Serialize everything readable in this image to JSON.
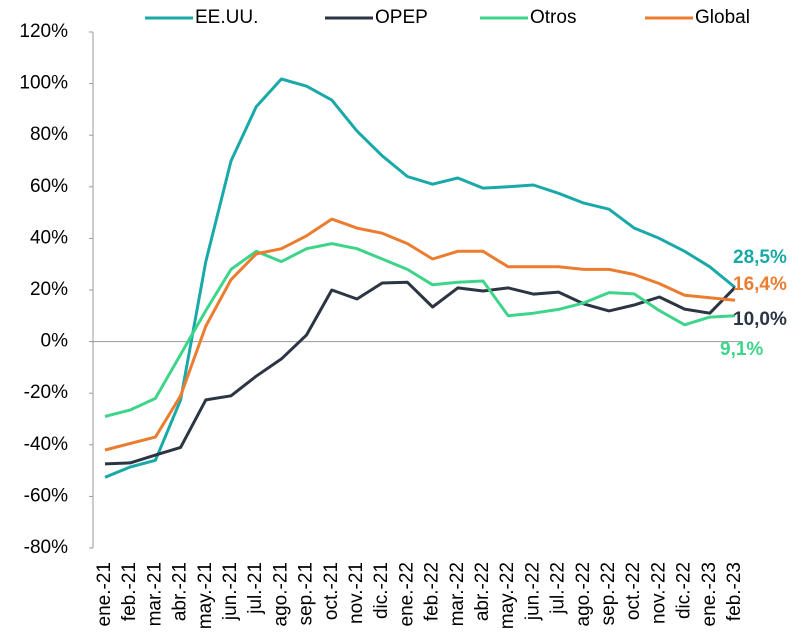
{
  "chart_data": {
    "type": "line",
    "categories": [
      "ene.-21",
      "feb.-21",
      "mar.-21",
      "abr.-21",
      "may.-21",
      "jun.-21",
      "jul.-21",
      "ago.-21",
      "sep.-21",
      "oct.-21",
      "nov.-21",
      "dic.-21",
      "ene.-22",
      "feb.-22",
      "mar.-22",
      "abr.-22",
      "may.-22",
      "jun.-22",
      "jul.-22",
      "ago.-22",
      "sep.-22",
      "oct.-22",
      "nov.-22",
      "dic.-22",
      "ene.-23",
      "feb.-23"
    ],
    "series": [
      {
        "name": "EE.UU.",
        "color": "#1aa9a9",
        "values": [
          -52.6,
          -48.6,
          -46,
          -22.6,
          31,
          70,
          91,
          101.8,
          99,
          93.6,
          81.6,
          72,
          64,
          61,
          63.4,
          59.5,
          60,
          60.7,
          57.5,
          53.7,
          51.3,
          44,
          40,
          35,
          29,
          21
        ]
      },
      {
        "name": "OPEP",
        "color": "#2b3544",
        "values": [
          -47.4,
          -47,
          -44,
          -41,
          -22.6,
          -21,
          -13.4,
          -6.7,
          2.6,
          20,
          16.5,
          22.7,
          23,
          13.4,
          20.8,
          19.6,
          20.8,
          18.4,
          19.2,
          14.6,
          11.9,
          14.2,
          17.3,
          12.6,
          11,
          21
        ]
      },
      {
        "name": "Otros",
        "color": "#3ed58a",
        "values": [
          -29,
          -26.5,
          -22,
          -5,
          12,
          28,
          35,
          31,
          36,
          38,
          36,
          32,
          28,
          22,
          23,
          23.5,
          10,
          11,
          12.5,
          15,
          19,
          18.5,
          12,
          6.5,
          9.5,
          10
        ]
      },
      {
        "name": "Global",
        "color": "#ec7c30",
        "values": [
          -42,
          -39.5,
          -37,
          -21,
          6,
          24,
          34,
          36,
          41,
          47.5,
          44,
          42,
          38,
          32,
          35,
          35,
          29,
          29,
          29,
          28,
          28,
          26,
          22.5,
          18,
          17,
          16
        ]
      }
    ],
    "ylim": [
      -80,
      120
    ],
    "yticks": [
      {
        "value": -80,
        "label": "-80%"
      },
      {
        "value": -60,
        "label": "-60%"
      },
      {
        "value": -40,
        "label": "-40%"
      },
      {
        "value": -20,
        "label": "-20%"
      },
      {
        "value": 0,
        "label": "0%"
      },
      {
        "value": 20,
        "label": "20%"
      },
      {
        "value": 40,
        "label": "40%"
      },
      {
        "value": 60,
        "label": "60%"
      },
      {
        "value": 80,
        "label": "80%"
      },
      {
        "value": 100,
        "label": "100%"
      },
      {
        "value": 120,
        "label": "120%"
      }
    ],
    "annotations": [
      {
        "text": "28,5%",
        "color": "#1aa9a9"
      },
      {
        "text": "16,4%",
        "color": "#ec7c30"
      },
      {
        "text": "10,0%",
        "color": "#2b3544"
      },
      {
        "text": "9,1%",
        "color": "#3ed58a"
      }
    ],
    "legend": "top"
  }
}
